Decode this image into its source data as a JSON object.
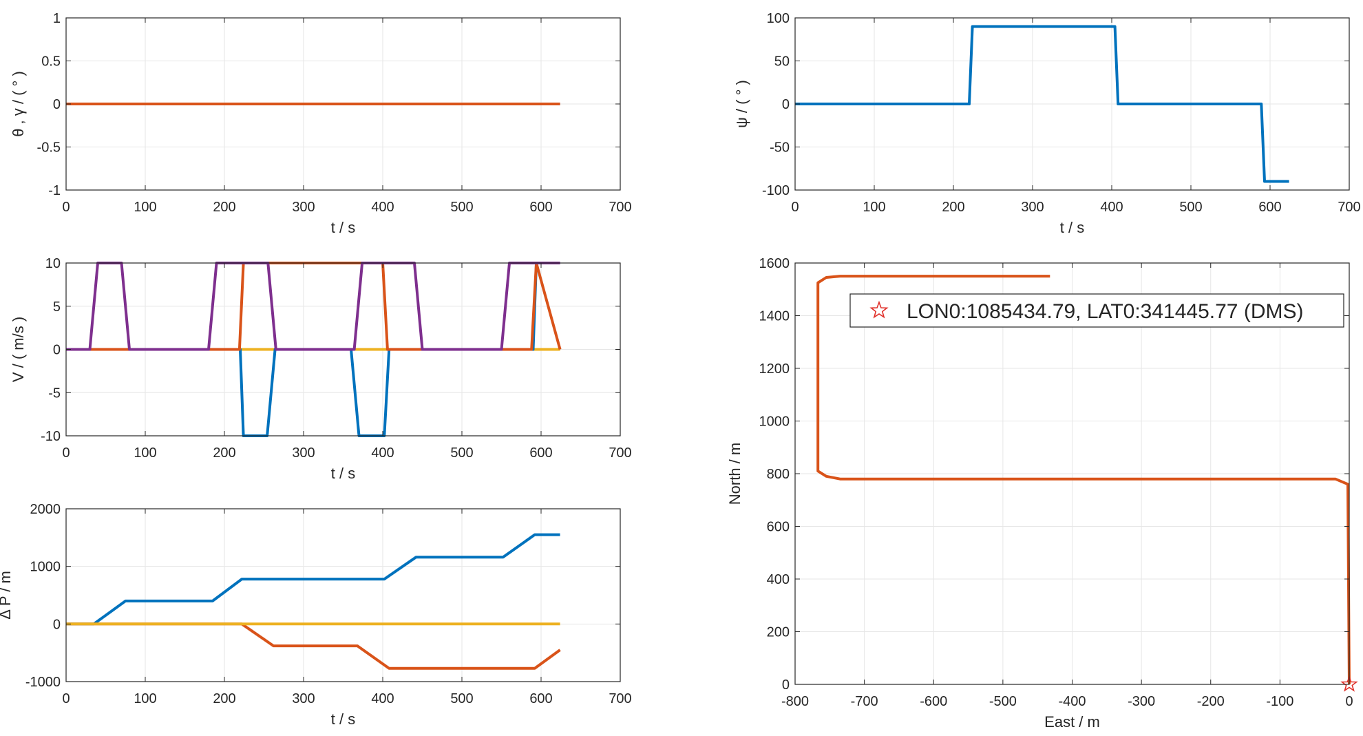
{
  "colors": {
    "blue": "#0072BD",
    "orange": "#D95319",
    "yellow": "#EDB120",
    "purple": "#7E2F8E",
    "grid": "#e6e6e6",
    "axis": "#262626",
    "marker": "#E0302A"
  },
  "chart_data": [
    {
      "id": "attitude",
      "type": "line",
      "ylabel": "θ , γ / ( ° )",
      "xlabel": "t / s",
      "xlim": [
        0,
        700
      ],
      "ylim": [
        -1,
        1
      ],
      "xticks": [
        0,
        100,
        200,
        300,
        400,
        500,
        600,
        700
      ],
      "yticks": [
        -1,
        -0.5,
        0,
        0.5,
        1
      ],
      "grid": true,
      "series": [
        {
          "color": "blue",
          "x": [
            0,
            624
          ],
          "y": [
            0,
            0
          ]
        },
        {
          "color": "orange",
          "x": [
            0,
            624
          ],
          "y": [
            0,
            0
          ]
        }
      ]
    },
    {
      "id": "heading",
      "type": "line",
      "ylabel": "ψ / ( ° )",
      "xlabel": "t / s",
      "xlim": [
        0,
        700
      ],
      "ylim": [
        -100,
        100
      ],
      "xticks": [
        0,
        100,
        200,
        300,
        400,
        500,
        600,
        700
      ],
      "yticks": [
        -100,
        -50,
        0,
        50,
        100
      ],
      "grid": true,
      "series": [
        {
          "color": "blue",
          "x": [
            0,
            220,
            224,
            404,
            408,
            589,
            593,
            624
          ],
          "y": [
            0,
            0,
            90,
            90,
            0,
            0,
            -90,
            -90
          ]
        }
      ]
    },
    {
      "id": "velocity",
      "type": "line",
      "ylabel": "V / ( m/s )",
      "xlabel": "t / s",
      "xlim": [
        0,
        700
      ],
      "ylim": [
        -10,
        10
      ],
      "xticks": [
        0,
        100,
        200,
        300,
        400,
        500,
        600,
        700
      ],
      "yticks": [
        -10,
        -5,
        0,
        5,
        10
      ],
      "grid": true,
      "series": [
        {
          "color": "yellow",
          "x": [
            0,
            624
          ],
          "y": [
            0,
            0
          ]
        },
        {
          "color": "blue",
          "x": [
            0,
            220,
            224,
            254,
            264,
            360,
            370,
            402,
            408,
            590,
            594,
            624
          ],
          "y": [
            0,
            0,
            -10,
            -10,
            0,
            0,
            -10,
            -10,
            0,
            0,
            10,
            10
          ]
        },
        {
          "color": "orange",
          "x": [
            0,
            219,
            224,
            400,
            406,
            588,
            594,
            624
          ],
          "y": [
            0,
            0,
            10,
            10,
            0,
            0,
            10,
            0
          ]
        },
        {
          "color": "purple",
          "x": [
            0,
            30,
            40,
            70,
            80,
            180,
            190,
            255,
            265,
            364,
            374,
            440,
            450,
            550,
            560,
            624
          ],
          "y": [
            0,
            0,
            10,
            10,
            0,
            0,
            10,
            10,
            0,
            0,
            10,
            10,
            0,
            0,
            10,
            10
          ]
        }
      ]
    },
    {
      "id": "position",
      "type": "line",
      "ylabel": "Δ P / m",
      "xlabel": "t / s",
      "xlim": [
        0,
        700
      ],
      "ylim": [
        -1000,
        2000
      ],
      "xticks": [
        0,
        100,
        200,
        300,
        400,
        500,
        600,
        700
      ],
      "yticks": [
        -1000,
        0,
        1000,
        2000
      ],
      "grid": true,
      "series": [
        {
          "color": "blue",
          "x": [
            0,
            35,
            75,
            185,
            222,
            402,
            442,
            552,
            592,
            624
          ],
          "y": [
            0,
            0,
            400,
            400,
            780,
            780,
            1160,
            1160,
            1550,
            1550
          ]
        },
        {
          "color": "orange",
          "x": [
            0,
            222,
            262,
            368,
            408,
            592,
            624
          ],
          "y": [
            0,
            0,
            -380,
            -380,
            -770,
            -770,
            -450
          ]
        },
        {
          "color": "yellow",
          "x": [
            0,
            624
          ],
          "y": [
            0,
            0
          ]
        }
      ]
    },
    {
      "id": "trajectory",
      "type": "line",
      "ylabel": "North / m",
      "xlabel": "East / m",
      "xlim": [
        -800,
        0
      ],
      "ylim": [
        0,
        1600
      ],
      "xticks": [
        -800,
        -700,
        -600,
        -500,
        -400,
        -300,
        -200,
        -100,
        0
      ],
      "yticks": [
        0,
        200,
        400,
        600,
        800,
        1000,
        1200,
        1400,
        1600
      ],
      "grid": true,
      "legend": {
        "placement": "top-right",
        "label": "LON0:1085434.79, LAT0:341445.77 (DMS)"
      },
      "start_marker": {
        "x": 0,
        "y": 0
      },
      "series": [
        {
          "color": "orange",
          "x": [
            0,
            -2,
            -20,
            -735,
            -755,
            -767,
            -767,
            -755,
            -735,
            -432
          ],
          "y": [
            0,
            760,
            780,
            780,
            790,
            810,
            1525,
            1545,
            1550,
            1550
          ]
        }
      ]
    }
  ]
}
